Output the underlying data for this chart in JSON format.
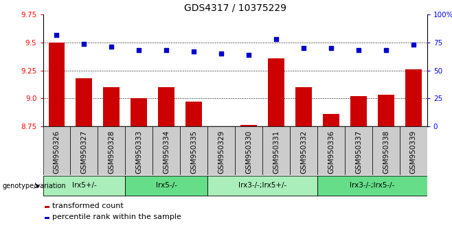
{
  "title": "GDS4317 / 10375229",
  "samples": [
    "GSM950326",
    "GSM950327",
    "GSM950328",
    "GSM950333",
    "GSM950334",
    "GSM950335",
    "GSM950329",
    "GSM950330",
    "GSM950331",
    "GSM950332",
    "GSM950336",
    "GSM950337",
    "GSM950338",
    "GSM950339"
  ],
  "transformed_counts": [
    9.5,
    9.18,
    9.1,
    9.0,
    9.1,
    8.97,
    8.75,
    8.76,
    9.36,
    9.1,
    8.86,
    9.02,
    9.03,
    9.26
  ],
  "percentile_ranks": [
    82,
    74,
    71,
    68,
    68,
    67,
    65,
    64,
    78,
    70,
    70,
    68,
    68,
    73
  ],
  "ylim_left": [
    8.75,
    9.75
  ],
  "ylim_right": [
    0,
    100
  ],
  "yticks_left": [
    8.75,
    9.0,
    9.25,
    9.5,
    9.75
  ],
  "yticks_right": [
    0,
    25,
    50,
    75,
    100
  ],
  "ytick_labels_right": [
    "0",
    "25",
    "50",
    "75",
    "100%"
  ],
  "bar_color": "#cc0000",
  "dot_color": "#0000cc",
  "groups": [
    {
      "label": "lrx5+/-",
      "start": 0,
      "end": 3,
      "color": "#aaeebb"
    },
    {
      "label": "lrx5-/-",
      "start": 3,
      "end": 6,
      "color": "#66dd88"
    },
    {
      "label": "lrx3-/-;lrx5+/-",
      "start": 6,
      "end": 10,
      "color": "#aaeebb"
    },
    {
      "label": "lrx3-/-;lrx5-/-",
      "start": 10,
      "end": 14,
      "color": "#66dd88"
    }
  ],
  "legend_items": [
    {
      "label": "transformed count",
      "color": "#cc0000"
    },
    {
      "label": "percentile rank within the sample",
      "color": "#0000cc"
    }
  ],
  "genotype_label": "genotype/variation",
  "background_color": "#ffffff",
  "title_fontsize": 10,
  "axis_fontsize": 7.5,
  "tick_fontsize": 7.5,
  "sample_box_color": "#cccccc",
  "gridline_color": "#000000",
  "gridline_yticks": [
    9.0,
    9.25,
    9.5
  ]
}
